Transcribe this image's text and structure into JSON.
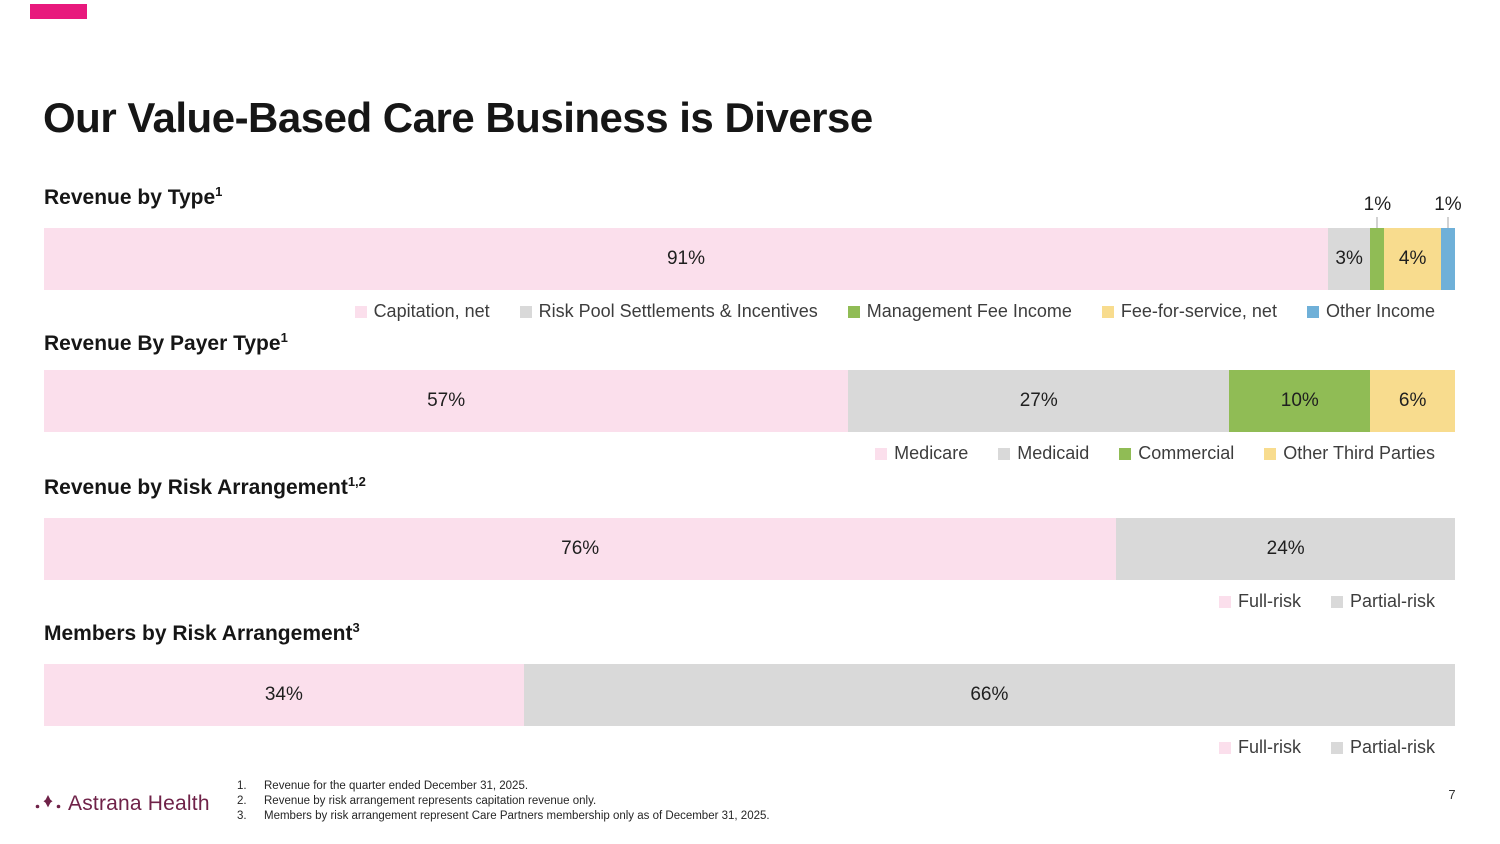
{
  "slide": {
    "title": "Our Value-Based Care Business is Diverse",
    "page_number": "7",
    "accent_color": "#E8197D"
  },
  "logo": {
    "text": "Astrana Health",
    "icon": "astrana-dots-sparkle-icon",
    "color": "#6F2248"
  },
  "colors": {
    "pink": "#FBDFEC",
    "gray": "#D9D9D9",
    "green": "#90BC55",
    "yellow": "#F8DC8E",
    "blue": "#6FB0D8",
    "leader_line": "#A6A6A6"
  },
  "chart_data": [
    {
      "type": "bar",
      "orientation": "horizontal_stacked_100pct",
      "title": "Revenue by Type",
      "superscript": "1",
      "legend_position": "bottom-right",
      "segments": [
        {
          "label": "Capitation, net",
          "value": 91,
          "text": "91%",
          "color": "pink",
          "value_label_position": "inside"
        },
        {
          "label": "Risk Pool Settlements & Incentives",
          "value": 3,
          "text": "3%",
          "color": "gray",
          "value_label_position": "inside"
        },
        {
          "label": "Management Fee Income",
          "value": 1,
          "text": "1%",
          "color": "green",
          "value_label_position": "above"
        },
        {
          "label": "Fee-for-service, net",
          "value": 4,
          "text": "4%",
          "color": "yellow",
          "value_label_position": "inside"
        },
        {
          "label": "Other Income",
          "value": 1,
          "text": "1%",
          "color": "blue",
          "value_label_position": "above"
        }
      ]
    },
    {
      "type": "bar",
      "orientation": "horizontal_stacked_100pct",
      "title": "Revenue By Payer Type",
      "superscript": "1",
      "legend_position": "bottom-right",
      "segments": [
        {
          "label": "Medicare",
          "value": 57,
          "text": "57%",
          "color": "pink",
          "value_label_position": "inside"
        },
        {
          "label": "Medicaid",
          "value": 27,
          "text": "27%",
          "color": "gray",
          "value_label_position": "inside"
        },
        {
          "label": "Commercial",
          "value": 10,
          "text": "10%",
          "color": "green",
          "value_label_position": "inside"
        },
        {
          "label": "Other Third Parties",
          "value": 6,
          "text": "6%",
          "color": "yellow",
          "value_label_position": "inside"
        }
      ]
    },
    {
      "type": "bar",
      "orientation": "horizontal_stacked_100pct",
      "title": "Revenue by Risk Arrangement",
      "superscript": "1,2",
      "legend_position": "bottom-right",
      "segments": [
        {
          "label": "Full-risk",
          "value": 76,
          "text": "76%",
          "color": "pink",
          "value_label_position": "inside"
        },
        {
          "label": "Partial-risk",
          "value": 24,
          "text": "24%",
          "color": "gray",
          "value_label_position": "inside"
        }
      ]
    },
    {
      "type": "bar",
      "orientation": "horizontal_stacked_100pct",
      "title": "Members by Risk Arrangement",
      "superscript": "3",
      "legend_position": "bottom-right",
      "segments": [
        {
          "label": "Full-risk",
          "value": 34,
          "text": "34%",
          "color": "pink",
          "value_label_position": "inside"
        },
        {
          "label": "Partial-risk",
          "value": 66,
          "text": "66%",
          "color": "gray",
          "value_label_position": "inside"
        }
      ]
    }
  ],
  "footnotes": [
    {
      "num": "1.",
      "text": "Revenue for the quarter ended December 31, 2025."
    },
    {
      "num": "2.",
      "text": "Revenue by risk arrangement represents capitation revenue only."
    },
    {
      "num": "3.",
      "text": "Members by risk arrangement represent Care Partners membership only as of December 31, 2025."
    }
  ]
}
